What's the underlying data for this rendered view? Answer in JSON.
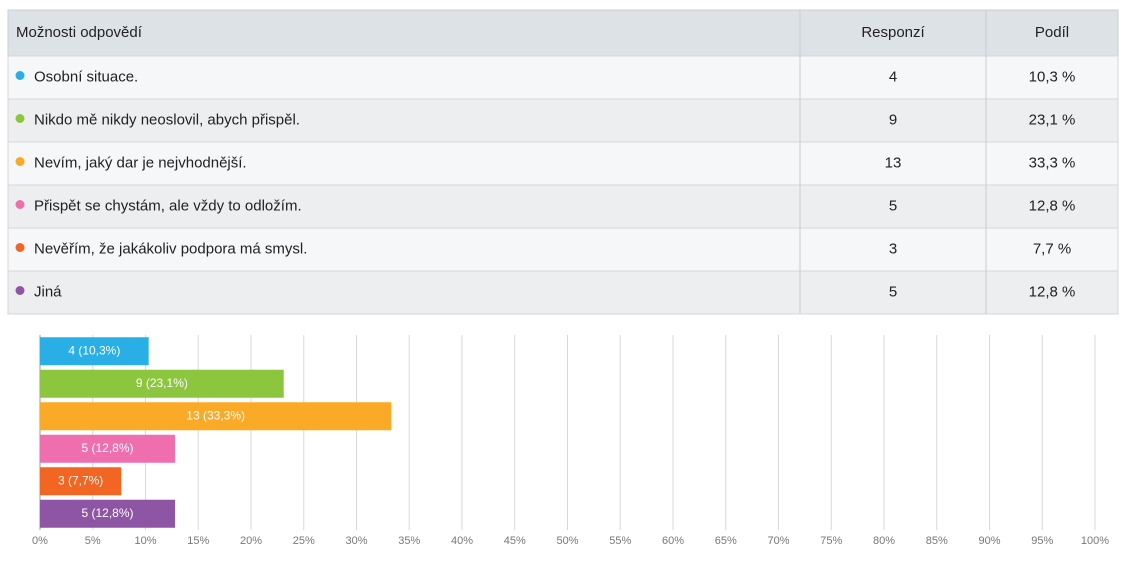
{
  "table": {
    "header": [
      "Možnosti odpovědí",
      "Responzí",
      "Podíl"
    ],
    "rows": [
      [
        "Osobní situace.",
        "4",
        "10,3 %"
      ],
      [
        "Nikdo mě nikdy neoslovil, abych přispěl.",
        "9",
        "23,1 %"
      ],
      [
        "Nevím, jaký dar je nejvhodnější.",
        "13",
        "33,3 %"
      ],
      [
        "Přispět se chystám, ale vždy to odložím.",
        "5",
        "12,8 %"
      ],
      [
        "Nevěřím, že jakákoliv podpora má smysl.",
        "3",
        "7,7 %"
      ],
      [
        "Jiná",
        "5",
        "12,8 %"
      ]
    ]
  },
  "chart_data": {
    "type": "bar",
    "orientation": "horizontal",
    "values": [
      10.3,
      23.1,
      33.3,
      12.8,
      7.7,
      12.8
    ],
    "value_labels": [
      "4 (10,3%)",
      "9 (23,1%)",
      "13 (33,3%)",
      "5 (12,8%)",
      "3 (7,7%)",
      "5 (12,8%)"
    ],
    "colors": [
      "#29aee6",
      "#8cc63f",
      "#fbaa27",
      "#ef6fae",
      "#f26522",
      "#8e55a5"
    ],
    "xlim": [
      0,
      100
    ],
    "xticks": [
      {
        "value": 0,
        "label": "0%"
      },
      {
        "value": 5,
        "label": "5%"
      },
      {
        "value": 10,
        "label": "10%"
      },
      {
        "value": 15,
        "label": "15%"
      },
      {
        "value": 20,
        "label": "20%"
      },
      {
        "value": 25,
        "label": "25%"
      },
      {
        "value": 30,
        "label": "30%"
      },
      {
        "value": 35,
        "label": "35%"
      },
      {
        "value": 40,
        "label": "40%"
      },
      {
        "value": 45,
        "label": "45%"
      },
      {
        "value": 50,
        "label": "50%"
      },
      {
        "value": 55,
        "label": "55%"
      },
      {
        "value": 60,
        "label": "60%"
      },
      {
        "value": 65,
        "label": "65%"
      },
      {
        "value": 70,
        "label": "70%"
      },
      {
        "value": 75,
        "label": "75%"
      },
      {
        "value": 80,
        "label": "80%"
      },
      {
        "value": 85,
        "label": "85%"
      },
      {
        "value": 90,
        "label": "90%"
      },
      {
        "value": 95,
        "label": "95%"
      },
      {
        "value": 100,
        "label": "100%"
      }
    ],
    "grid": true
  }
}
